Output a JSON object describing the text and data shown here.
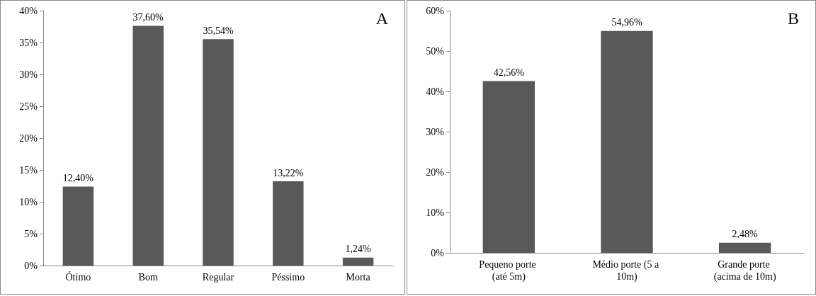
{
  "chart_data": [
    {
      "type": "bar",
      "title": "A",
      "categories": [
        "Ótimo",
        "Bom",
        "Regular",
        "Péssimo",
        "Morta"
      ],
      "values": [
        12.4,
        37.6,
        35.54,
        13.22,
        1.24
      ],
      "color": "#595959",
      "value_labels": [
        "12,40%",
        "37,60%",
        "35,54%",
        "13,22%",
        "1,24%"
      ],
      "ylim": [
        0,
        40
      ],
      "yticks": [
        {
          "value": 0,
          "label": "0%"
        },
        {
          "value": 5,
          "label": "5%"
        },
        {
          "value": 10,
          "label": "10%"
        },
        {
          "value": 15,
          "label": "15%"
        },
        {
          "value": 20,
          "label": "20%"
        },
        {
          "value": 25,
          "label": "25%"
        },
        {
          "value": 30,
          "label": "30%"
        },
        {
          "value": 35,
          "label": "35%"
        },
        {
          "value": 40,
          "label": "40%"
        }
      ]
    },
    {
      "type": "bar",
      "title": "B",
      "categories": [
        "Pequeno porte (até 5m)",
        "Médio porte (5 a 10m)",
        "Grande porte (acima de 10m)"
      ],
      "values": [
        42.56,
        54.96,
        2.48
      ],
      "color": "#595959",
      "value_labels": [
        "42,56%",
        "54,96%",
        "2,48%"
      ],
      "ylim": [
        0,
        60
      ],
      "yticks": [
        {
          "value": 0,
          "label": "0%"
        },
        {
          "value": 10,
          "label": "10%"
        },
        {
          "value": 20,
          "label": "20%"
        },
        {
          "value": 30,
          "label": "30%"
        },
        {
          "value": 40,
          "label": "40%"
        },
        {
          "value": 50,
          "label": "50%"
        },
        {
          "value": 60,
          "label": "60%"
        }
      ]
    }
  ]
}
